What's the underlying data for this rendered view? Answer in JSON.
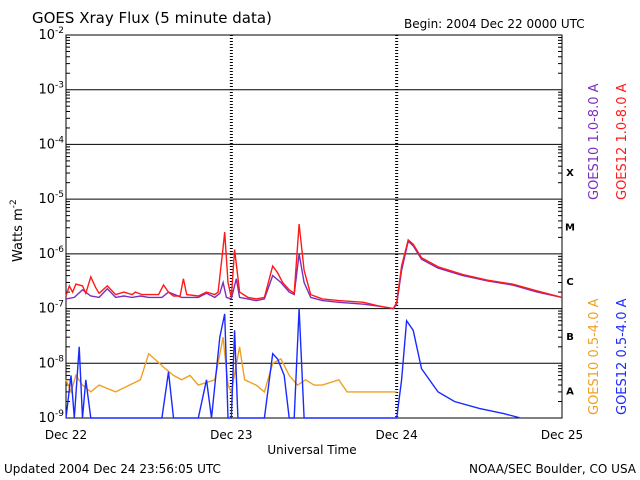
{
  "chart_data": {
    "type": "line",
    "title": "GOES Xray Flux (5 minute data)",
    "begin_label": "Begin:  2004 Dec 22 0000 UTC",
    "xlabel": "Universal Time",
    "ylabel": "Watts m",
    "ylabel_exp": "-2",
    "x_ticks": [
      "Dec 22",
      "Dec 23",
      "Dec 24",
      "Dec 25"
    ],
    "x_range_days": [
      0,
      3
    ],
    "y_scale": "log",
    "ylim": [
      1e-09,
      0.01
    ],
    "y_ticks": [
      {
        "base": "10",
        "exp": "-2"
      },
      {
        "base": "10",
        "exp": "-3"
      },
      {
        "base": "10",
        "exp": "-4"
      },
      {
        "base": "10",
        "exp": "-5"
      },
      {
        "base": "10",
        "exp": "-6"
      },
      {
        "base": "10",
        "exp": "-7"
      },
      {
        "base": "10",
        "exp": "-8"
      },
      {
        "base": "10",
        "exp": "-9"
      }
    ],
    "flare_classes": [
      "X",
      "M",
      "C",
      "B",
      "A"
    ],
    "colors": {
      "goes10_long": "#7b2fbe",
      "goes12_long": "#ff1a1a",
      "goes10_short": "#f0a020",
      "goes12_short": "#1a2aff"
    },
    "series": [
      {
        "name": "GOES10 1.0-8.0 A",
        "color_key": "goes10_long",
        "points": [
          [
            0,
            1.5e-07
          ],
          [
            0.05,
            1.6e-07
          ],
          [
            0.1,
            2.2e-07
          ],
          [
            0.15,
            1.7e-07
          ],
          [
            0.2,
            1.6e-07
          ],
          [
            0.25,
            2.3e-07
          ],
          [
            0.3,
            1.6e-07
          ],
          [
            0.35,
            1.7e-07
          ],
          [
            0.4,
            1.6e-07
          ],
          [
            0.45,
            1.7e-07
          ],
          [
            0.5,
            1.6e-07
          ],
          [
            0.58,
            1.6e-07
          ],
          [
            0.62,
            2e-07
          ],
          [
            0.7,
            1.6e-07
          ],
          [
            0.8,
            1.6e-07
          ],
          [
            0.85,
            1.9e-07
          ],
          [
            0.9,
            1.6e-07
          ],
          [
            0.93,
            1.9e-07
          ],
          [
            0.95,
            3e-07
          ],
          [
            0.97,
            1.6e-07
          ],
          [
            1.0,
            1.5e-07
          ],
          [
            1.03,
            3.5e-07
          ],
          [
            1.05,
            1.6e-07
          ],
          [
            1.1,
            1.5e-07
          ],
          [
            1.15,
            1.4e-07
          ],
          [
            1.2,
            1.5e-07
          ],
          [
            1.25,
            4e-07
          ],
          [
            1.3,
            3e-07
          ],
          [
            1.35,
            2e-07
          ],
          [
            1.38,
            1.8e-07
          ],
          [
            1.41,
            1e-06
          ],
          [
            1.44,
            3e-07
          ],
          [
            1.48,
            1.6e-07
          ],
          [
            1.55,
            1.4e-07
          ],
          [
            1.65,
            1.3e-07
          ],
          [
            1.8,
            1.2e-07
          ],
          [
            1.9,
            1.1e-07
          ],
          [
            1.98,
            1e-07
          ],
          [
            2.0,
            1.2e-07
          ],
          [
            2.03,
            5e-07
          ],
          [
            2.07,
            1.7e-06
          ],
          [
            2.1,
            1.4e-06
          ],
          [
            2.15,
            8e-07
          ],
          [
            2.25,
            5.5e-07
          ],
          [
            2.4,
            4e-07
          ],
          [
            2.55,
            3.2e-07
          ],
          [
            2.7,
            2.7e-07
          ],
          [
            2.85,
            2e-07
          ],
          [
            3.0,
            1.6e-07
          ]
        ]
      },
      {
        "name": "GOES12 1.0-8.0 A",
        "color_key": "goes12_long",
        "points": [
          [
            0,
            1.7e-07
          ],
          [
            0.02,
            2.6e-07
          ],
          [
            0.04,
            2e-07
          ],
          [
            0.06,
            2.8e-07
          ],
          [
            0.1,
            2.6e-07
          ],
          [
            0.12,
            1.9e-07
          ],
          [
            0.15,
            3.8e-07
          ],
          [
            0.18,
            2.4e-07
          ],
          [
            0.2,
            1.9e-07
          ],
          [
            0.25,
            2.6e-07
          ],
          [
            0.3,
            1.8e-07
          ],
          [
            0.35,
            2e-07
          ],
          [
            0.4,
            1.8e-07
          ],
          [
            0.42,
            2e-07
          ],
          [
            0.46,
            1.8e-07
          ],
          [
            0.5,
            1.8e-07
          ],
          [
            0.56,
            1.8e-07
          ],
          [
            0.59,
            2.7e-07
          ],
          [
            0.62,
            2e-07
          ],
          [
            0.65,
            1.7e-07
          ],
          [
            0.69,
            1.7e-07
          ],
          [
            0.71,
            3.5e-07
          ],
          [
            0.73,
            1.8e-07
          ],
          [
            0.8,
            1.7e-07
          ],
          [
            0.85,
            2e-07
          ],
          [
            0.9,
            1.8e-07
          ],
          [
            0.92,
            2e-07
          ],
          [
            0.95,
            1.3e-06
          ],
          [
            0.96,
            2.5e-06
          ],
          [
            0.98,
            3e-07
          ],
          [
            1.0,
            1.6e-07
          ],
          [
            1.02,
            1.2e-06
          ],
          [
            1.05,
            2e-07
          ],
          [
            1.1,
            1.6e-07
          ],
          [
            1.15,
            1.5e-07
          ],
          [
            1.2,
            1.6e-07
          ],
          [
            1.25,
            6e-07
          ],
          [
            1.28,
            4.5e-07
          ],
          [
            1.31,
            3e-07
          ],
          [
            1.35,
            2.2e-07
          ],
          [
            1.38,
            1.9e-07
          ],
          [
            1.41,
            3.5e-06
          ],
          [
            1.44,
            5e-07
          ],
          [
            1.48,
            1.8e-07
          ],
          [
            1.55,
            1.5e-07
          ],
          [
            1.65,
            1.4e-07
          ],
          [
            1.8,
            1.3e-07
          ],
          [
            1.9,
            1.1e-07
          ],
          [
            1.98,
            1e-07
          ],
          [
            2.0,
            1.3e-07
          ],
          [
            2.03,
            6e-07
          ],
          [
            2.07,
            1.8e-06
          ],
          [
            2.1,
            1.5e-06
          ],
          [
            2.15,
            8.5e-07
          ],
          [
            2.25,
            5.8e-07
          ],
          [
            2.4,
            4.2e-07
          ],
          [
            2.55,
            3.3e-07
          ],
          [
            2.7,
            2.8e-07
          ],
          [
            2.85,
            2.1e-07
          ],
          [
            3.0,
            1.6e-07
          ]
        ]
      },
      {
        "name": "GOES10 0.5-4.0 A",
        "color_key": "goes10_short",
        "points": [
          [
            0,
            5e-09
          ],
          [
            0.03,
            3e-09
          ],
          [
            0.06,
            6e-09
          ],
          [
            0.1,
            4e-09
          ],
          [
            0.15,
            3e-09
          ],
          [
            0.2,
            4e-09
          ],
          [
            0.3,
            3e-09
          ],
          [
            0.45,
            5e-09
          ],
          [
            0.5,
            1.5e-08
          ],
          [
            0.55,
            1.1e-08
          ],
          [
            0.6,
            8e-09
          ],
          [
            0.65,
            6e-09
          ],
          [
            0.7,
            5e-09
          ],
          [
            0.75,
            6e-09
          ],
          [
            0.8,
            4e-09
          ],
          [
            0.9,
            5e-09
          ],
          [
            0.95,
            3e-08
          ],
          [
            0.98,
            4e-09
          ],
          [
            1.0,
            3e-09
          ],
          [
            1.05,
            2e-08
          ],
          [
            1.08,
            5e-09
          ],
          [
            1.15,
            4e-09
          ],
          [
            1.2,
            3e-09
          ],
          [
            1.25,
            1e-08
          ],
          [
            1.3,
            1.2e-08
          ],
          [
            1.35,
            6e-09
          ],
          [
            1.4,
            4e-09
          ],
          [
            1.45,
            5e-09
          ],
          [
            1.5,
            4e-09
          ],
          [
            1.55,
            4e-09
          ],
          [
            1.65,
            5e-09
          ],
          [
            1.7,
            3e-09
          ],
          [
            1.8,
            3e-09
          ],
          [
            2.0,
            3e-09
          ]
        ]
      },
      {
        "name": "GOES12 0.5-4.0 A",
        "color_key": "goes12_short",
        "points": [
          [
            0,
            1e-09
          ],
          [
            0.03,
            6e-09
          ],
          [
            0.05,
            1e-09
          ],
          [
            0.08,
            2e-08
          ],
          [
            0.1,
            1e-09
          ],
          [
            0.12,
            5e-09
          ],
          [
            0.15,
            1e-09
          ],
          [
            0.2,
            1e-09
          ],
          [
            0.3,
            1e-09
          ],
          [
            0.4,
            1e-09
          ],
          [
            0.5,
            1e-09
          ],
          [
            0.58,
            1e-09
          ],
          [
            0.62,
            7e-09
          ],
          [
            0.65,
            1e-09
          ],
          [
            0.7,
            1e-09
          ],
          [
            0.8,
            1e-09
          ],
          [
            0.85,
            5e-09
          ],
          [
            0.88,
            1e-09
          ],
          [
            0.93,
            3e-08
          ],
          [
            0.96,
            8e-08
          ],
          [
            0.98,
            1e-09
          ],
          [
            1.0,
            1e-09
          ],
          [
            1.02,
            4e-08
          ],
          [
            1.04,
            1e-09
          ],
          [
            1.1,
            1e-09
          ],
          [
            1.15,
            1e-09
          ],
          [
            1.2,
            1e-09
          ],
          [
            1.25,
            1.5e-08
          ],
          [
            1.28,
            1.2e-08
          ],
          [
            1.32,
            6e-09
          ],
          [
            1.35,
            1e-09
          ],
          [
            1.38,
            1e-09
          ],
          [
            1.41,
            1e-07
          ],
          [
            1.44,
            1e-09
          ],
          [
            1.5,
            1e-09
          ],
          [
            1.7,
            1e-09
          ],
          [
            1.8,
            1e-09
          ],
          [
            2.0,
            1e-09
          ],
          [
            2.03,
            5e-09
          ],
          [
            2.06,
            6e-08
          ],
          [
            2.1,
            4e-08
          ],
          [
            2.15,
            8e-09
          ],
          [
            2.25,
            3e-09
          ],
          [
            2.35,
            2e-09
          ],
          [
            2.5,
            1.5e-09
          ],
          [
            2.65,
            1.2e-09
          ],
          [
            2.75,
            1e-09
          ]
        ]
      }
    ]
  },
  "footer": {
    "updated": "Updated 2004 Dec 24 23:56:05 UTC",
    "credit": "NOAA/SEC Boulder, CO USA"
  }
}
